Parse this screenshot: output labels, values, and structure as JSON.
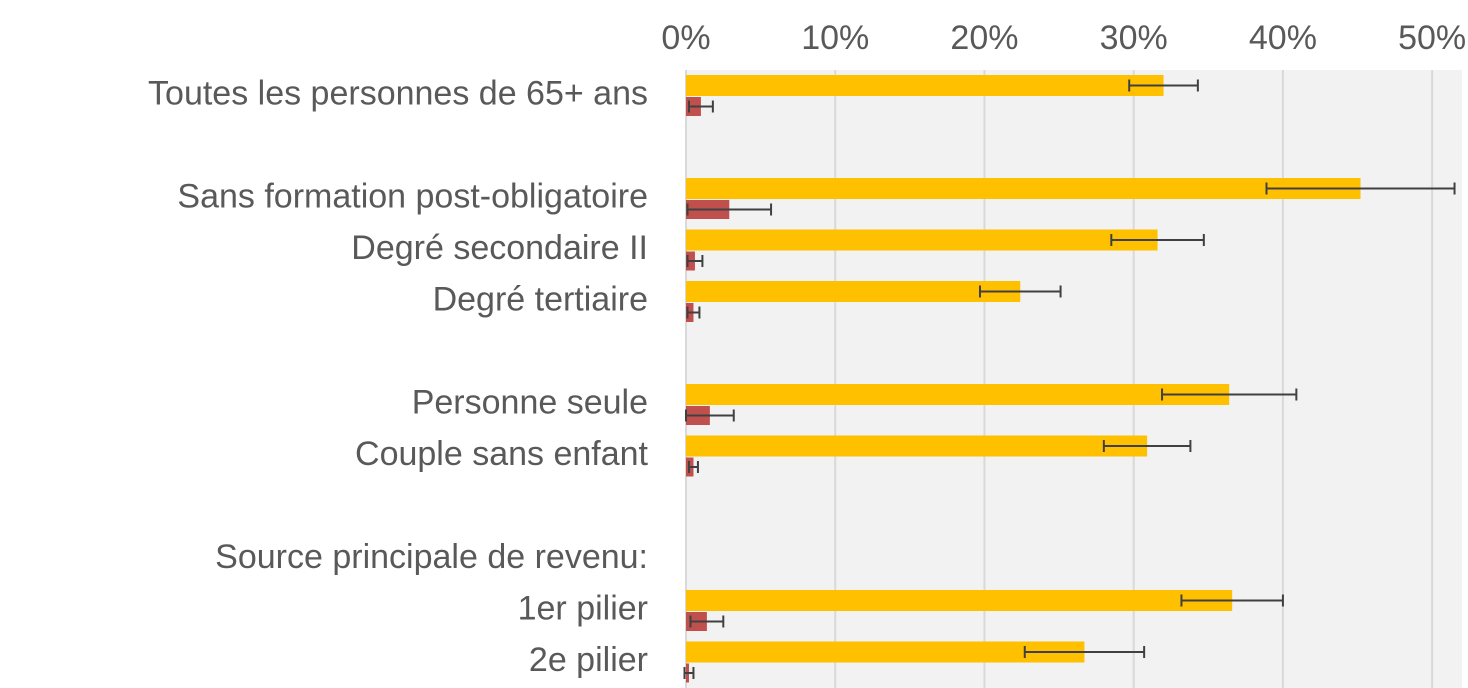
{
  "chart_data": {
    "type": "bar",
    "orientation": "horizontal",
    "categories": [
      "Toutes les personnes de 65+ ans",
      null,
      "Sans formation post-obligatoire",
      "Degré secondaire II",
      "Degré tertiaire",
      null,
      "Personne seule",
      "Couple sans enfant",
      null,
      "Source principale de revenu:",
      "1er pilier",
      "2e pilier"
    ],
    "series": [
      {
        "color": "#ffc000",
        "values": [
          32.0,
          null,
          45.2,
          31.6,
          22.4,
          null,
          36.4,
          30.9,
          null,
          null,
          36.6,
          26.7
        ],
        "errors": [
          2.3,
          null,
          6.3,
          3.1,
          2.7,
          null,
          4.5,
          2.9,
          null,
          null,
          3.4,
          4.0
        ]
      },
      {
        "color": "#c0504d",
        "values": [
          1.0,
          null,
          2.9,
          0.6,
          0.5,
          null,
          1.6,
          0.5,
          null,
          null,
          1.4,
          0.2
        ],
        "errors": [
          0.8,
          null,
          2.8,
          0.5,
          0.4,
          null,
          1.6,
          0.3,
          null,
          null,
          1.1,
          0.3
        ]
      }
    ],
    "xlim": [
      0,
      52
    ],
    "xticks": [
      {
        "value": 0,
        "label": "0%"
      },
      {
        "value": 10,
        "label": "10%"
      },
      {
        "value": 20,
        "label": "20%"
      },
      {
        "value": 30,
        "label": "30%"
      },
      {
        "value": 40,
        "label": "40%"
      },
      {
        "value": 50,
        "label": "50%"
      }
    ],
    "grid": true
  }
}
